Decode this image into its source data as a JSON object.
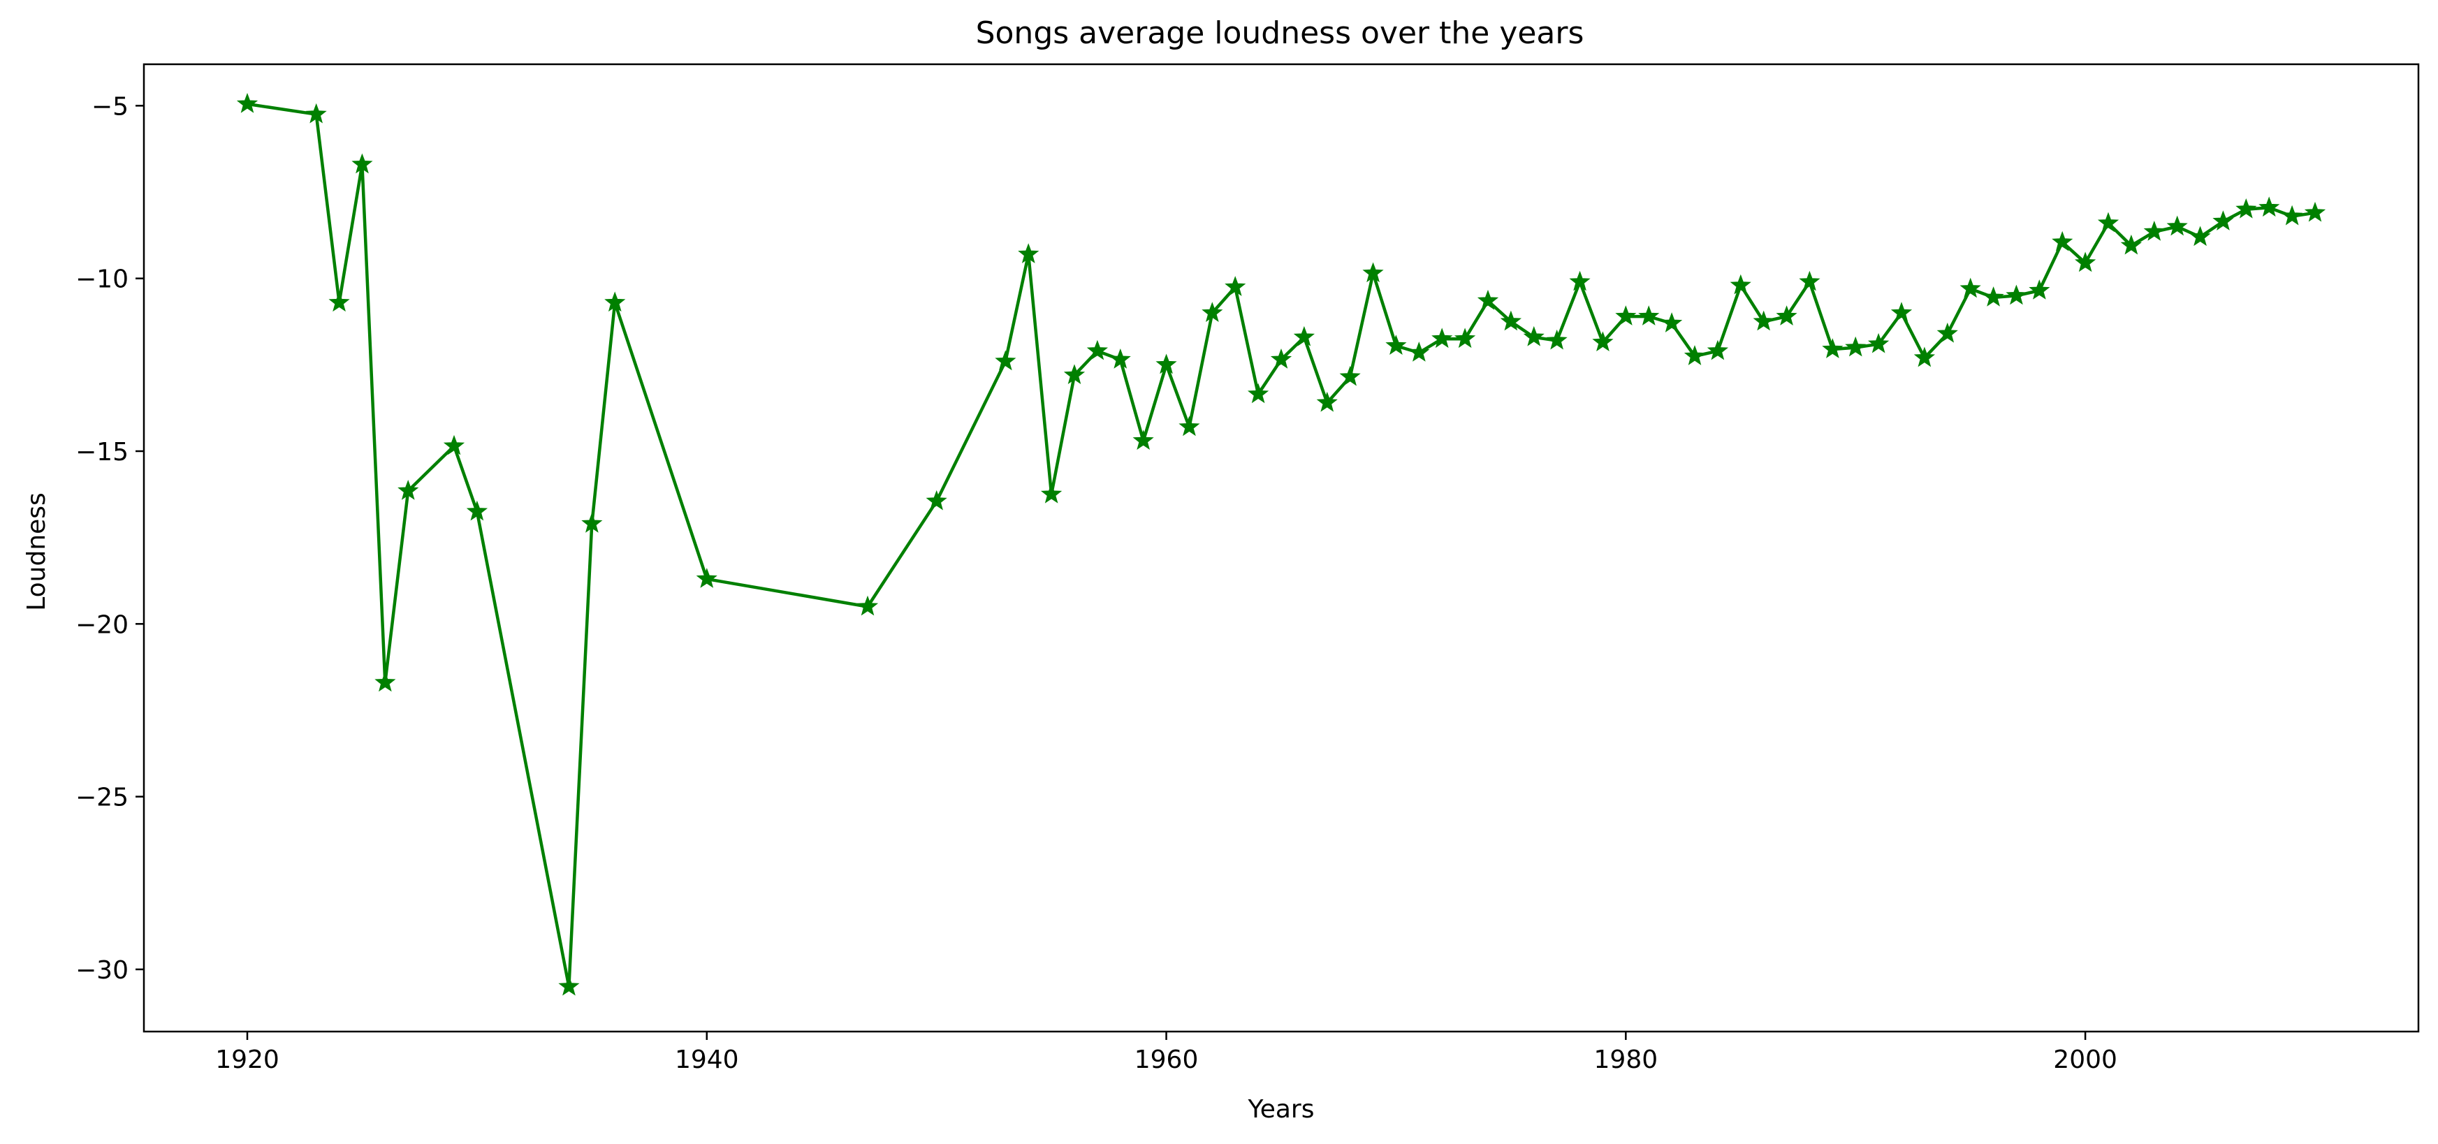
{
  "chart_data": {
    "type": "line",
    "title": "Songs average loudness over the years",
    "xlabel": "Years",
    "ylabel": "Loudness",
    "xlim": [
      1915.5,
      2014.5
    ],
    "ylim": [
      -31.8,
      -3.8
    ],
    "xticks": [
      1920,
      1940,
      1960,
      1980,
      2000
    ],
    "yticks": [
      -30,
      -25,
      -20,
      -15,
      -10,
      -5
    ],
    "xtick_labels": [
      "1920",
      "1940",
      "1960",
      "1980",
      "2000"
    ],
    "ytick_labels": [
      "−30",
      "−25",
      "−20",
      "−15",
      "−10",
      "−5"
    ],
    "grid": false,
    "marker": "star",
    "color": "#008000",
    "series": [
      {
        "x": [
          1920,
          1923,
          1924,
          1925,
          1926,
          1927,
          1929,
          1930,
          1934,
          1935,
          1936,
          1940,
          1947,
          1950,
          1953,
          1954,
          1955,
          1956,
          1957,
          1958,
          1959,
          1960,
          1961,
          1962,
          1963,
          1964,
          1965,
          1966,
          1967,
          1968,
          1969,
          1970,
          1971,
          1972,
          1973,
          1974,
          1975,
          1976,
          1977,
          1978,
          1979,
          1980,
          1981,
          1982,
          1983,
          1984,
          1985,
          1986,
          1987,
          1988,
          1989,
          1990,
          1991,
          1992,
          1993,
          1994,
          1995,
          1996,
          1997,
          1998,
          1999,
          2000,
          2001,
          2002,
          2003,
          2004,
          2005,
          2006,
          2007,
          2008,
          2009,
          2010
        ],
        "y": [
          -4.95,
          -5.25,
          -10.7,
          -6.7,
          -21.7,
          -16.15,
          -14.85,
          -16.75,
          -30.5,
          -17.1,
          -10.7,
          -18.7,
          -19.5,
          -16.45,
          -12.4,
          -9.3,
          -16.25,
          -12.8,
          -12.1,
          -12.35,
          -14.7,
          -12.5,
          -14.3,
          -11.0,
          -10.25,
          -13.35,
          -12.35,
          -11.7,
          -13.6,
          -12.85,
          -9.85,
          -11.95,
          -12.15,
          -11.75,
          -11.75,
          -10.65,
          -11.25,
          -11.7,
          -11.8,
          -10.1,
          -11.85,
          -11.1,
          -11.1,
          -11.3,
          -12.25,
          -12.1,
          -10.2,
          -11.25,
          -11.1,
          -10.1,
          -12.05,
          -12.0,
          -11.9,
          -11.0,
          -12.3,
          -11.6,
          -10.3,
          -10.55,
          -10.5,
          -10.35,
          -8.95,
          -9.55,
          -8.4,
          -9.05,
          -8.65,
          -8.5,
          -8.8,
          -8.35,
          -8.0,
          -7.95,
          -8.2,
          -8.1
        ]
      }
    ]
  }
}
